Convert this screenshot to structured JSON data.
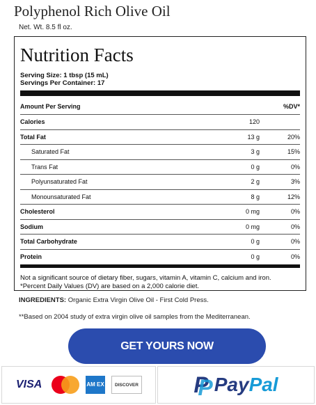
{
  "product": {
    "title": "Polyphenol Rich Olive Oil",
    "net_wt": "Net. Wt. 8.5 fl oz."
  },
  "nutrition": {
    "title": "Nutrition Facts",
    "serving_size": "Serving Size: 1 tbsp (15 mL)",
    "servings_per_container": "Servings Per Container: 17",
    "header_left": "Amount Per Serving",
    "header_right": "%DV*",
    "rows": [
      {
        "name": "Calories",
        "amount": "120",
        "dv": ""
      },
      {
        "name": "Total Fat",
        "amount": "13 g",
        "dv": "20%"
      },
      {
        "name": "Saturated Fat",
        "amount": "3 g",
        "dv": "15%"
      },
      {
        "name": "Trans Fat",
        "amount": "0 g",
        "dv": "0%"
      },
      {
        "name": "Polyunsaturated Fat",
        "amount": "2 g",
        "dv": "3%"
      },
      {
        "name": "Monounsaturated Fat",
        "amount": "8 g",
        "dv": "12%"
      },
      {
        "name": "Cholesterol",
        "amount": "0 mg",
        "dv": "0%"
      },
      {
        "name": "Sodium",
        "amount": "0 mg",
        "dv": "0%"
      },
      {
        "name": "Total Carbohydrate",
        "amount": "0 g",
        "dv": "0%"
      },
      {
        "name": "Protein",
        "amount": "0 g",
        "dv": "0%"
      }
    ],
    "footnote_1": "Not a significant source of dietary fiber, sugars, vitamin A, vitamin C, calcium and iron.",
    "footnote_2": "*Percent Daily Values (DV) are based on a 2,000 calorie diet."
  },
  "ingredients": {
    "label": "INGREDIENTS:",
    "text": " Organic Extra Virgin Olive Oil - First Cold Press."
  },
  "study_note": "**Based on 2004 study of extra virgin olive oil samples from the Mediterranean.",
  "cta": {
    "label": "GET YOURS NOW",
    "color": "#2b4cae"
  },
  "payments": {
    "visa": "VISA",
    "amex": "AM EX",
    "discover": "DISCOVER",
    "paypal_pay": "Pay",
    "paypal_pal": "Pal",
    "paypal_mark": "P"
  }
}
